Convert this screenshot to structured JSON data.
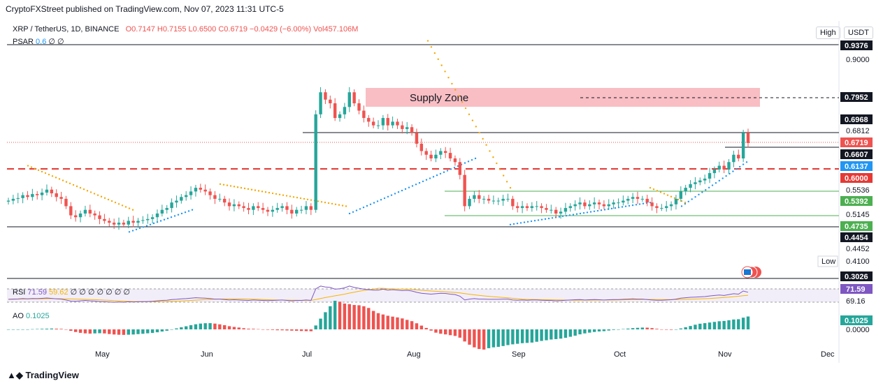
{
  "header": "CryptoFXStreet published on TradingView.com, Nov 07, 2023 11:31 UTC-5",
  "legend": {
    "symbol": "XRP / TetherUS, 1D, BINANCE",
    "open": "O0.7147",
    "high": "H0.7155",
    "low": "L0.6500",
    "close": "C0.6719",
    "change": "−0.0429 (−6.00%)",
    "volume": "Vol457.106M",
    "psar_name": "PSAR",
    "psar_value": "0.6",
    "psar_rest": "∅ ∅"
  },
  "buttons": {
    "high": "High",
    "low": "Low",
    "currency": "USDT"
  },
  "rsi": {
    "name": "RSI",
    "value": "71.59",
    "ma_value": "59.62",
    "rest": "∅ ∅ ∅ ∅ ∅ ∅ ∅"
  },
  "ao": {
    "name": "AO",
    "value": "0.1025"
  },
  "logo": "TradingView",
  "colors": {
    "up": "#26a69a",
    "down": "#ef5350",
    "psar_up": "#2196f3",
    "psar_down": "#f7a600",
    "supply": "#f8bbc0",
    "rsi_line": "#7e57c2"
  },
  "chart_data": {
    "type": "candlestick",
    "symbol": "XRP / TetherUS",
    "timeframe": "1D",
    "x_ticks": [
      "May",
      "Jun",
      "Jul",
      "Aug",
      "Sep",
      "Oct",
      "Nov",
      "Dec"
    ],
    "price_axis_labels": [
      "0.9000",
      "0.6812",
      "0.5536",
      "0.5145",
      "0.4452",
      "0.4100"
    ],
    "price_tags": [
      {
        "value": "0.9376",
        "style": "black"
      },
      {
        "value": "0.7952",
        "style": "black"
      },
      {
        "value": "0.6968",
        "style": "black"
      },
      {
        "value": "0.6719",
        "style": "red"
      },
      {
        "value": "0.6607",
        "style": "black"
      },
      {
        "value": "0.6137",
        "style": "blue"
      },
      {
        "value": "0.6000",
        "style": "red"
      },
      {
        "value": "0.5392",
        "style": "green"
      },
      {
        "value": "0.4735",
        "style": "green"
      },
      {
        "value": "0.4454",
        "style": "black"
      },
      {
        "value": "0.3026",
        "style": "black"
      }
    ],
    "zones": [
      {
        "label": "Supply Zone",
        "from": 0.78,
        "to": 0.82
      }
    ],
    "rsi_axis": {
      "value_tag": "71.59",
      "label": "69.16"
    },
    "ao_axis": {
      "value_tag": "0.1025",
      "label": "0.0000"
    },
    "price_ylim": [
      0.29,
      0.97
    ],
    "closes": [
      0.515,
      0.52,
      0.522,
      0.53,
      0.525,
      0.533,
      0.53,
      0.537,
      0.545,
      0.535,
      0.525,
      0.52,
      0.5,
      0.475,
      0.47,
      0.48,
      0.49,
      0.48,
      0.475,
      0.465,
      0.46,
      0.455,
      0.45,
      0.455,
      0.45,
      0.46,
      0.455,
      0.46,
      0.462,
      0.465,
      0.47,
      0.48,
      0.49,
      0.495,
      0.51,
      0.515,
      0.525,
      0.53,
      0.54,
      0.55,
      0.545,
      0.54,
      0.53,
      0.52,
      0.52,
      0.51,
      0.5,
      0.505,
      0.5,
      0.495,
      0.49,
      0.5,
      0.495,
      0.49,
      0.485,
      0.49,
      0.495,
      0.5,
      0.49,
      0.48,
      0.49,
      0.49,
      0.5,
      0.49,
      0.75,
      0.81,
      0.79,
      0.78,
      0.74,
      0.75,
      0.77,
      0.81,
      0.78,
      0.76,
      0.74,
      0.73,
      0.72,
      0.72,
      0.74,
      0.72,
      0.73,
      0.72,
      0.71,
      0.715,
      0.7,
      0.67,
      0.65,
      0.64,
      0.63,
      0.64,
      0.65,
      0.645,
      0.63,
      0.62,
      0.585,
      0.5,
      0.52,
      0.53,
      0.52,
      0.52,
      0.515,
      0.515,
      0.515,
      0.52,
      0.52,
      0.5,
      0.495,
      0.5,
      0.495,
      0.5,
      0.5,
      0.495,
      0.49,
      0.49,
      0.48,
      0.485,
      0.495,
      0.5,
      0.505,
      0.51,
      0.5,
      0.505,
      0.51,
      0.505,
      0.5,
      0.505,
      0.51,
      0.51,
      0.515,
      0.52,
      0.525,
      0.52,
      0.52,
      0.51,
      0.5,
      0.495,
      0.495,
      0.5,
      0.505,
      0.52,
      0.54,
      0.55,
      0.56,
      0.565,
      0.57,
      0.575,
      0.59,
      0.6,
      0.61,
      0.6,
      0.62,
      0.64,
      0.63,
      0.7,
      0.6719
    ],
    "psar_segments": [
      {
        "trend": "down",
        "from": [
          0.61,
          0.46
        ],
        "to": [
          0.49,
          0.49
        ]
      },
      {
        "trend": "up",
        "from": [
          0.43,
          0.44
        ],
        "to": [
          0.49,
          0.5
        ]
      },
      {
        "trend": "down",
        "from": [
          0.56,
          0.5
        ],
        "to": [
          0.5,
          0.5
        ]
      },
      {
        "trend": "up",
        "from": [
          0.48,
          0.5
        ],
        "to": [
          0.63,
          0.63
        ]
      },
      {
        "trend": "down",
        "from": [
          0.95,
          0.95
        ],
        "to": [
          0.55,
          0.55
        ]
      },
      {
        "trend": "up",
        "from": [
          0.45,
          0.45
        ],
        "to": [
          0.51,
          0.51
        ]
      },
      {
        "trend": "down",
        "from": [
          0.55,
          0.55
        ],
        "to": [
          0.51,
          0.51
        ]
      },
      {
        "trend": "up",
        "from": [
          0.5,
          0.5
        ],
        "to": [
          0.62,
          0.62
        ]
      }
    ]
  }
}
